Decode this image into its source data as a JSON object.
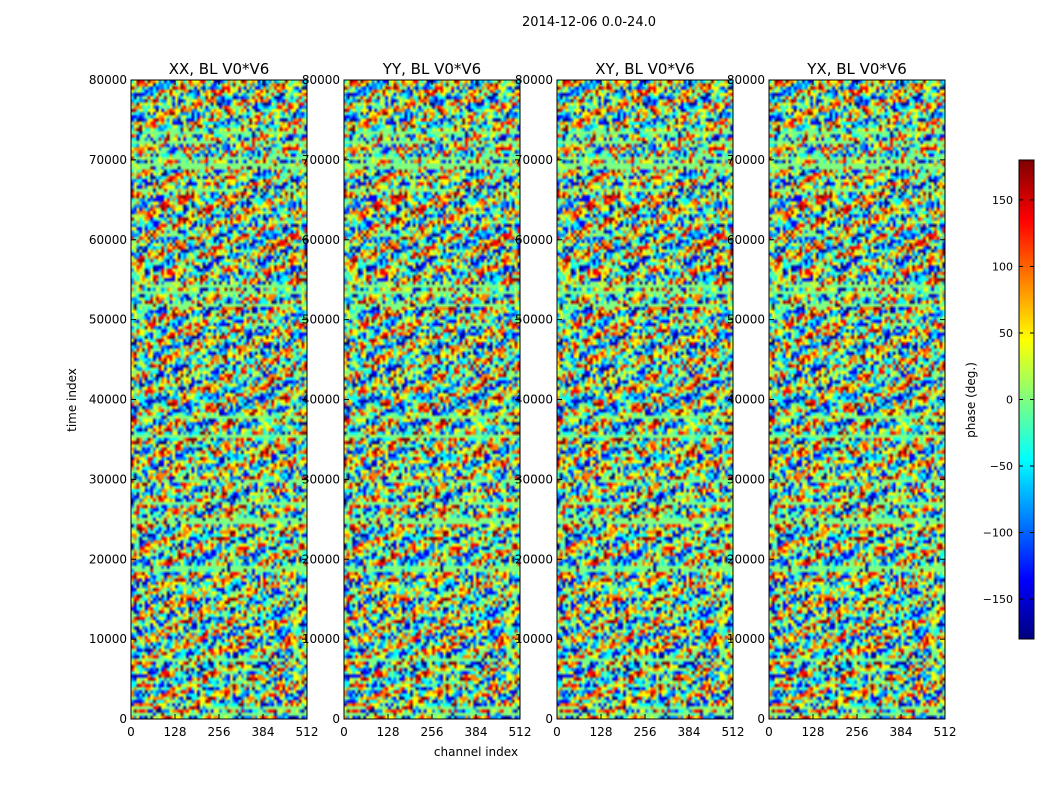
{
  "figure": {
    "suptitle": "2014-12-06 0.0-24.0",
    "xlabel": "channel index",
    "ylabel": "time index"
  },
  "colorbar": {
    "label": "phase (deg.)",
    "range": [
      -180,
      180
    ],
    "ticks": [
      150,
      100,
      50,
      0,
      -50,
      -100,
      -150
    ],
    "tick_labels": [
      "150",
      "100",
      "50",
      "0",
      "−50",
      "−100",
      "−150"
    ],
    "colormap": [
      "#00007f",
      "#0000ff",
      "#007fff",
      "#00ffff",
      "#7fff7f",
      "#ffff00",
      "#ff7f00",
      "#ff0000",
      "#7f0000"
    ]
  },
  "chart_data": [
    {
      "type": "heatmap",
      "title": "XX, BL V0*V6",
      "xlabel": "channel index",
      "ylabel": "time index",
      "xlim": [
        0,
        512
      ],
      "ylim": [
        0,
        80000
      ],
      "xticks": [
        0,
        128,
        256,
        384,
        512
      ],
      "yticks": [
        0,
        10000,
        20000,
        30000,
        40000,
        50000,
        60000,
        70000,
        80000
      ],
      "value_quantity": "phase (deg.)",
      "value_range": [
        -180,
        180
      ]
    },
    {
      "type": "heatmap",
      "title": "YY, BL V0*V6",
      "xlim": [
        0,
        512
      ],
      "ylim": [
        0,
        80000
      ],
      "xticks": [
        0,
        128,
        256,
        384,
        512
      ],
      "yticks": [
        0,
        10000,
        20000,
        30000,
        40000,
        50000,
        60000,
        70000,
        80000
      ],
      "value_quantity": "phase (deg.)",
      "value_range": [
        -180,
        180
      ]
    },
    {
      "type": "heatmap",
      "title": "XY, BL V0*V6",
      "xlim": [
        0,
        512
      ],
      "ylim": [
        0,
        80000
      ],
      "xticks": [
        0,
        128,
        256,
        384,
        512
      ],
      "yticks": [
        0,
        10000,
        20000,
        30000,
        40000,
        50000,
        60000,
        70000,
        80000
      ],
      "value_quantity": "phase (deg.)",
      "value_range": [
        -180,
        180
      ]
    },
    {
      "type": "heatmap",
      "title": "YX, BL V0*V6",
      "xlim": [
        0,
        512
      ],
      "ylim": [
        0,
        80000
      ],
      "xticks": [
        0,
        128,
        256,
        384,
        512
      ],
      "yticks": [
        0,
        10000,
        20000,
        30000,
        40000,
        50000,
        60000,
        70000,
        80000
      ],
      "value_quantity": "phase (deg.)",
      "value_range": [
        -180,
        180
      ]
    }
  ]
}
